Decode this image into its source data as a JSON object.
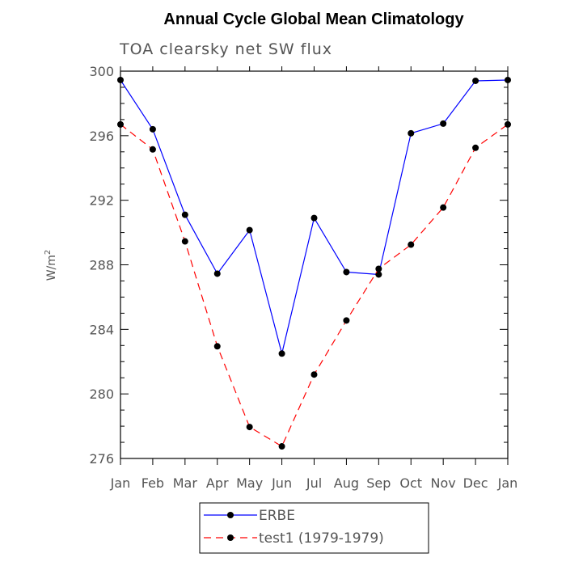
{
  "chart_data": {
    "type": "line",
    "title": "Annual Cycle Global Mean Climatology",
    "subtitle": "TOA clearsky net SW flux",
    "ylabel": "W/m",
    "ylabel_superscript": "2",
    "xlabel": "",
    "categories": [
      "Jan",
      "Feb",
      "Mar",
      "Apr",
      "May",
      "Jun",
      "Jul",
      "Aug",
      "Sep",
      "Oct",
      "Nov",
      "Dec",
      "Jan"
    ],
    "ylim": [
      276,
      300
    ],
    "yticks": [
      276,
      280,
      284,
      288,
      292,
      296,
      300
    ],
    "series": [
      {
        "name": "ERBE",
        "color": "#0000ff",
        "dashed": false,
        "values": [
          299.45,
          296.4,
          291.1,
          287.45,
          290.15,
          282.5,
          290.9,
          287.55,
          287.4,
          296.15,
          296.75,
          299.4,
          299.45
        ]
      },
      {
        "name": "test1 (1979-1979)",
        "color": "#ff0000",
        "dashed": true,
        "values": [
          296.7,
          295.15,
          289.45,
          282.95,
          277.95,
          276.75,
          281.2,
          284.55,
          287.75,
          289.25,
          291.55,
          295.25,
          296.7
        ]
      }
    ],
    "legend_position": "bottom"
  }
}
